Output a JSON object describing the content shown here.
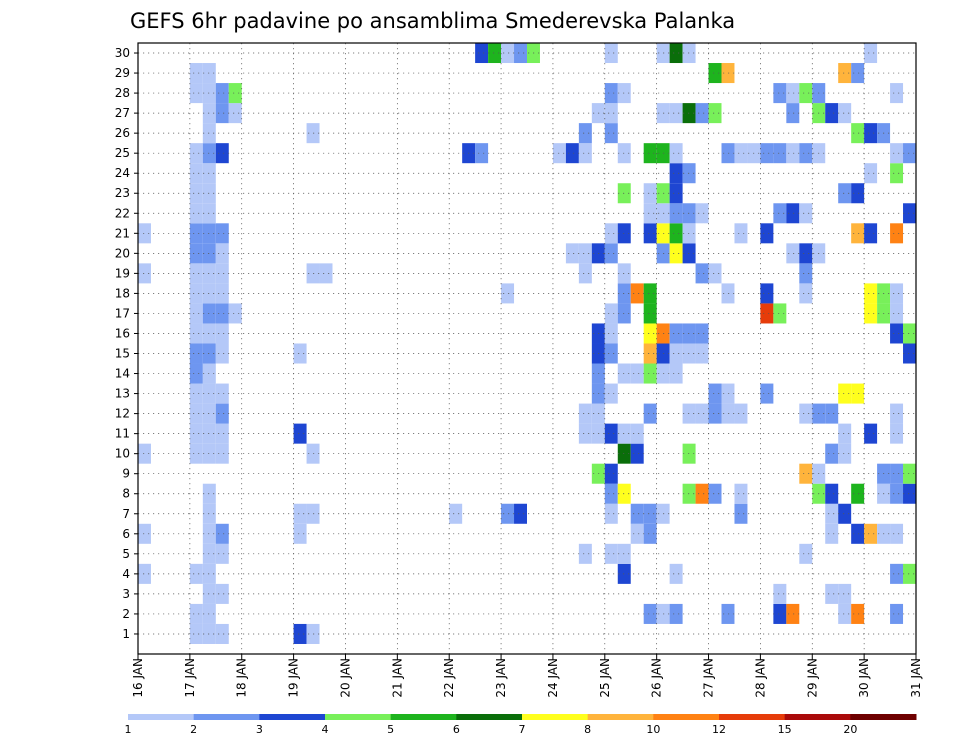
{
  "chart_data": {
    "type": "heatmap",
    "title": "GEFS 6hr padavine po ansamblima Smederevska Palanka",
    "xlabel": "",
    "ylabel": "",
    "x_ticks": [
      "16 JAN",
      "17 JAN",
      "18 JAN",
      "19 JAN",
      "20 JAN",
      "21 JAN",
      "22 JAN",
      "23 JAN",
      "24 JAN",
      "25 JAN",
      "26 JAN",
      "27 JAN",
      "28 JAN",
      "29 JAN",
      "30 JAN",
      "31 JAN"
    ],
    "y_ticks": [
      1,
      2,
      3,
      4,
      5,
      6,
      7,
      8,
      9,
      10,
      11,
      12,
      13,
      14,
      15,
      16,
      17,
      18,
      19,
      20,
      21,
      22,
      23,
      24,
      25,
      26,
      27,
      28,
      29,
      30
    ],
    "xlim": [
      "16 JAN 00",
      "31 JAN 00"
    ],
    "ylim": [
      0,
      30
    ],
    "step_hours": 6,
    "grid": true,
    "legend_position": "bottom",
    "legend": {
      "labels": [
        "1",
        "2",
        "3",
        "4",
        "5",
        "6",
        "7",
        "8",
        "10",
        "12",
        "15",
        "20"
      ],
      "colors": [
        "#b4c8f8",
        "#6e96f0",
        "#1e46d2",
        "#78f05a",
        "#1eb41e",
        "#0a6e0a",
        "#ffff1e",
        "#ffb43c",
        "#ff8214",
        "#e63c0a",
        "#aa0a0a",
        "#6e0000"
      ]
    },
    "cells": [
      [
        1,
        17.0,
        1
      ],
      [
        1,
        17.25,
        1
      ],
      [
        1,
        17.5,
        1
      ],
      [
        1,
        19.0,
        3
      ],
      [
        1,
        19.25,
        1
      ],
      [
        2,
        17.0,
        1
      ],
      [
        2,
        17.25,
        1
      ],
      [
        2,
        25.75,
        2
      ],
      [
        2,
        26.0,
        1
      ],
      [
        2,
        26.25,
        2
      ],
      [
        2,
        27.25,
        2
      ],
      [
        2,
        28.25,
        3
      ],
      [
        2,
        28.5,
        9
      ],
      [
        2,
        29.5,
        1
      ],
      [
        2,
        29.75,
        9
      ],
      [
        2,
        30.5,
        2
      ],
      [
        3,
        17.25,
        1
      ],
      [
        3,
        17.5,
        1
      ],
      [
        3,
        28.25,
        1
      ],
      [
        3,
        29.25,
        1
      ],
      [
        3,
        29.5,
        1
      ],
      [
        4,
        16.0,
        1
      ],
      [
        4,
        17.0,
        1
      ],
      [
        4,
        17.25,
        1
      ],
      [
        4,
        25.25,
        3
      ],
      [
        4,
        26.25,
        1
      ],
      [
        4,
        30.5,
        2
      ],
      [
        4,
        30.75,
        4
      ],
      [
        5,
        17.25,
        1
      ],
      [
        5,
        17.5,
        1
      ],
      [
        5,
        24.5,
        1
      ],
      [
        5,
        25.0,
        1
      ],
      [
        5,
        25.25,
        1
      ],
      [
        5,
        28.75,
        1
      ],
      [
        6,
        16.0,
        1
      ],
      [
        6,
        17.25,
        1
      ],
      [
        6,
        17.5,
        2
      ],
      [
        6,
        19.0,
        1
      ],
      [
        6,
        25.5,
        1
      ],
      [
        6,
        25.75,
        2
      ],
      [
        6,
        29.25,
        1
      ],
      [
        6,
        29.75,
        3
      ],
      [
        6,
        30.0,
        8
      ],
      [
        6,
        30.25,
        1
      ],
      [
        6,
        30.5,
        1
      ],
      [
        7,
        17.25,
        1
      ],
      [
        7,
        19.0,
        1
      ],
      [
        7,
        19.25,
        1
      ],
      [
        7,
        22.0,
        1
      ],
      [
        7,
        23.0,
        2
      ],
      [
        7,
        23.25,
        3
      ],
      [
        7,
        25.0,
        1
      ],
      [
        7,
        25.5,
        2
      ],
      [
        7,
        25.75,
        2
      ],
      [
        7,
        26.0,
        1
      ],
      [
        7,
        27.5,
        2
      ],
      [
        7,
        29.25,
        1
      ],
      [
        7,
        29.5,
        3
      ],
      [
        8,
        17.25,
        1
      ],
      [
        8,
        25.0,
        2
      ],
      [
        8,
        25.25,
        7
      ],
      [
        8,
        26.5,
        4
      ],
      [
        8,
        26.75,
        9
      ],
      [
        8,
        27.0,
        2
      ],
      [
        8,
        27.5,
        1
      ],
      [
        8,
        29.0,
        4
      ],
      [
        8,
        29.25,
        3
      ],
      [
        8,
        29.75,
        5
      ],
      [
        8,
        30.25,
        1
      ],
      [
        8,
        30.5,
        2
      ],
      [
        8,
        30.75,
        3
      ],
      [
        9,
        24.75,
        4
      ],
      [
        9,
        25.0,
        3
      ],
      [
        9,
        28.75,
        8
      ],
      [
        9,
        29.0,
        1
      ],
      [
        9,
        30.25,
        2
      ],
      [
        9,
        30.5,
        2
      ],
      [
        9,
        30.75,
        4
      ],
      [
        10,
        16.0,
        1
      ],
      [
        10,
        17.0,
        1
      ],
      [
        10,
        17.25,
        1
      ],
      [
        10,
        17.5,
        1
      ],
      [
        10,
        19.25,
        1
      ],
      [
        10,
        25.25,
        6
      ],
      [
        10,
        25.5,
        3
      ],
      [
        10,
        26.5,
        4
      ],
      [
        10,
        29.25,
        2
      ],
      [
        10,
        29.5,
        1
      ],
      [
        11,
        17.0,
        1
      ],
      [
        11,
        17.25,
        1
      ],
      [
        11,
        17.5,
        1
      ],
      [
        11,
        19.0,
        3
      ],
      [
        11,
        24.5,
        1
      ],
      [
        11,
        24.75,
        1
      ],
      [
        11,
        25.0,
        3
      ],
      [
        11,
        25.25,
        1
      ],
      [
        11,
        25.5,
        1
      ],
      [
        11,
        29.5,
        1
      ],
      [
        11,
        30.0,
        3
      ],
      [
        11,
        30.5,
        1
      ],
      [
        12,
        17.0,
        1
      ],
      [
        12,
        17.25,
        1
      ],
      [
        12,
        17.5,
        2
      ],
      [
        12,
        24.5,
        1
      ],
      [
        12,
        24.75,
        1
      ],
      [
        12,
        25.75,
        2
      ],
      [
        12,
        26.5,
        1
      ],
      [
        12,
        26.75,
        1
      ],
      [
        12,
        27.0,
        2
      ],
      [
        12,
        27.25,
        1
      ],
      [
        12,
        27.5,
        1
      ],
      [
        12,
        28.75,
        1
      ],
      [
        12,
        29.0,
        2
      ],
      [
        12,
        29.25,
        2
      ],
      [
        12,
        30.5,
        1
      ],
      [
        13,
        17.0,
        1
      ],
      [
        13,
        17.25,
        1
      ],
      [
        13,
        17.5,
        1
      ],
      [
        13,
        24.75,
        2
      ],
      [
        13,
        25.0,
        1
      ],
      [
        13,
        27.0,
        2
      ],
      [
        13,
        27.25,
        1
      ],
      [
        13,
        28.0,
        2
      ],
      [
        13,
        29.5,
        7
      ],
      [
        13,
        29.75,
        7
      ],
      [
        14,
        17.0,
        2
      ],
      [
        14,
        17.25,
        1
      ],
      [
        14,
        24.75,
        2
      ],
      [
        14,
        25.25,
        1
      ],
      [
        14,
        25.5,
        1
      ],
      [
        14,
        25.75,
        4
      ],
      [
        14,
        26.0,
        1
      ],
      [
        14,
        26.25,
        1
      ],
      [
        15,
        17.0,
        2
      ],
      [
        15,
        17.25,
        2
      ],
      [
        15,
        17.5,
        1
      ],
      [
        15,
        19.0,
        1
      ],
      [
        15,
        24.75,
        3
      ],
      [
        15,
        25.0,
        2
      ],
      [
        15,
        25.75,
        8
      ],
      [
        15,
        26.0,
        3
      ],
      [
        15,
        26.25,
        1
      ],
      [
        15,
        26.5,
        1
      ],
      [
        15,
        26.75,
        1
      ],
      [
        15,
        30.75,
        3
      ],
      [
        16,
        17.0,
        1
      ],
      [
        16,
        17.25,
        1
      ],
      [
        16,
        17.5,
        1
      ],
      [
        16,
        24.75,
        3
      ],
      [
        16,
        25.0,
        1
      ],
      [
        16,
        25.75,
        7
      ],
      [
        16,
        26.0,
        9
      ],
      [
        16,
        26.25,
        2
      ],
      [
        16,
        26.5,
        2
      ],
      [
        16,
        26.75,
        2
      ],
      [
        16,
        30.5,
        3
      ],
      [
        16,
        30.75,
        4
      ],
      [
        17,
        17.0,
        1
      ],
      [
        17,
        17.25,
        2
      ],
      [
        17,
        17.5,
        2
      ],
      [
        17,
        17.75,
        1
      ],
      [
        17,
        25.0,
        1
      ],
      [
        17,
        25.25,
        2
      ],
      [
        17,
        25.75,
        5
      ],
      [
        17,
        28.0,
        10
      ],
      [
        17,
        28.25,
        4
      ],
      [
        17,
        30.0,
        7
      ],
      [
        17,
        30.25,
        4
      ],
      [
        17,
        30.5,
        1
      ],
      [
        18,
        17.0,
        1
      ],
      [
        18,
        17.25,
        1
      ],
      [
        18,
        17.5,
        1
      ],
      [
        18,
        23.0,
        1
      ],
      [
        18,
        25.25,
        2
      ],
      [
        18,
        25.5,
        9
      ],
      [
        18,
        25.75,
        5
      ],
      [
        18,
        27.25,
        1
      ],
      [
        18,
        28.0,
        3
      ],
      [
        18,
        28.75,
        1
      ],
      [
        18,
        30.0,
        7
      ],
      [
        18,
        30.25,
        4
      ],
      [
        18,
        30.5,
        1
      ],
      [
        19,
        16.0,
        1
      ],
      [
        19,
        17.0,
        1
      ],
      [
        19,
        17.25,
        1
      ],
      [
        19,
        17.5,
        1
      ],
      [
        19,
        19.25,
        1
      ],
      [
        19,
        19.5,
        1
      ],
      [
        19,
        24.5,
        1
      ],
      [
        19,
        25.25,
        1
      ],
      [
        19,
        26.75,
        2
      ],
      [
        19,
        27.0,
        1
      ],
      [
        19,
        28.75,
        2
      ],
      [
        20,
        17.0,
        2
      ],
      [
        20,
        17.25,
        2
      ],
      [
        20,
        17.5,
        1
      ],
      [
        20,
        24.25,
        1
      ],
      [
        20,
        24.5,
        1
      ],
      [
        20,
        24.75,
        3
      ],
      [
        20,
        25.0,
        2
      ],
      [
        20,
        26.0,
        2
      ],
      [
        20,
        26.25,
        7
      ],
      [
        20,
        26.5,
        3
      ],
      [
        20,
        28.5,
        1
      ],
      [
        20,
        28.75,
        3
      ],
      [
        20,
        29.0,
        1
      ],
      [
        21,
        16.0,
        1
      ],
      [
        21,
        17.0,
        2
      ],
      [
        21,
        17.25,
        2
      ],
      [
        21,
        17.5,
        2
      ],
      [
        21,
        25.0,
        1
      ],
      [
        21,
        25.25,
        3
      ],
      [
        21,
        25.75,
        3
      ],
      [
        21,
        26.0,
        7
      ],
      [
        21,
        26.25,
        5
      ],
      [
        21,
        26.5,
        1
      ],
      [
        21,
        27.5,
        1
      ],
      [
        21,
        28.0,
        3
      ],
      [
        21,
        29.75,
        8
      ],
      [
        21,
        30.0,
        3
      ],
      [
        21,
        30.5,
        9
      ],
      [
        22,
        17.0,
        1
      ],
      [
        22,
        17.25,
        1
      ],
      [
        22,
        25.75,
        1
      ],
      [
        22,
        26.0,
        1
      ],
      [
        22,
        26.25,
        2
      ],
      [
        22,
        26.5,
        2
      ],
      [
        22,
        26.75,
        1
      ],
      [
        22,
        28.25,
        2
      ],
      [
        22,
        28.5,
        3
      ],
      [
        22,
        28.75,
        1
      ],
      [
        22,
        30.75,
        3
      ],
      [
        23,
        17.0,
        1
      ],
      [
        23,
        17.25,
        1
      ],
      [
        23,
        25.25,
        4
      ],
      [
        23,
        25.75,
        1
      ],
      [
        23,
        26.0,
        4
      ],
      [
        23,
        26.25,
        3
      ],
      [
        23,
        29.5,
        2
      ],
      [
        23,
        29.75,
        3
      ],
      [
        24,
        17.0,
        1
      ],
      [
        24,
        17.25,
        1
      ],
      [
        24,
        26.25,
        3
      ],
      [
        24,
        26.5,
        2
      ],
      [
        24,
        30.0,
        1
      ],
      [
        24,
        30.5,
        4
      ],
      [
        25,
        17.0,
        1
      ],
      [
        25,
        17.25,
        2
      ],
      [
        25,
        17.5,
        3
      ],
      [
        25,
        22.25,
        3
      ],
      [
        25,
        22.5,
        2
      ],
      [
        25,
        24.0,
        1
      ],
      [
        25,
        24.25,
        3
      ],
      [
        25,
        24.5,
        1
      ],
      [
        25,
        25.25,
        1
      ],
      [
        25,
        25.75,
        5
      ],
      [
        25,
        26.0,
        5
      ],
      [
        25,
        26.25,
        1
      ],
      [
        25,
        27.25,
        2
      ],
      [
        25,
        27.5,
        1
      ],
      [
        25,
        27.75,
        1
      ],
      [
        25,
        28.0,
        2
      ],
      [
        25,
        28.25,
        2
      ],
      [
        25,
        28.5,
        1
      ],
      [
        25,
        28.75,
        2
      ],
      [
        25,
        29.0,
        1
      ],
      [
        25,
        30.5,
        1
      ],
      [
        25,
        30.75,
        2
      ],
      [
        26,
        17.25,
        1
      ],
      [
        26,
        19.25,
        1
      ],
      [
        26,
        24.5,
        2
      ],
      [
        26,
        25.0,
        2
      ],
      [
        26,
        29.75,
        4
      ],
      [
        26,
        30.0,
        3
      ],
      [
        26,
        30.25,
        2
      ],
      [
        27,
        17.25,
        1
      ],
      [
        27,
        17.5,
        2
      ],
      [
        27,
        17.75,
        1
      ],
      [
        27,
        24.75,
        1
      ],
      [
        27,
        25.0,
        1
      ],
      [
        27,
        26.0,
        1
      ],
      [
        27,
        26.25,
        1
      ],
      [
        27,
        26.5,
        6
      ],
      [
        27,
        26.75,
        2
      ],
      [
        27,
        27.0,
        4
      ],
      [
        27,
        28.5,
        2
      ],
      [
        27,
        29.0,
        4
      ],
      [
        27,
        29.25,
        3
      ],
      [
        27,
        29.5,
        1
      ],
      [
        28,
        17.0,
        1
      ],
      [
        28,
        17.25,
        1
      ],
      [
        28,
        17.5,
        2
      ],
      [
        28,
        17.75,
        4
      ],
      [
        28,
        25.0,
        2
      ],
      [
        28,
        25.25,
        1
      ],
      [
        28,
        28.25,
        2
      ],
      [
        28,
        28.5,
        1
      ],
      [
        28,
        28.75,
        4
      ],
      [
        28,
        29.0,
        2
      ],
      [
        28,
        30.5,
        1
      ],
      [
        29,
        17.0,
        1
      ],
      [
        29,
        17.25,
        1
      ],
      [
        29,
        27.0,
        5
      ],
      [
        29,
        27.25,
        8
      ],
      [
        29,
        29.5,
        8
      ],
      [
        29,
        29.75,
        2
      ],
      [
        30,
        22.5,
        3
      ],
      [
        30,
        22.75,
        5
      ],
      [
        30,
        23.0,
        1
      ],
      [
        30,
        23.25,
        2
      ],
      [
        30,
        23.5,
        4
      ],
      [
        30,
        25.0,
        1
      ],
      [
        30,
        26.0,
        1
      ],
      [
        30,
        26.25,
        6
      ],
      [
        30,
        26.5,
        1
      ],
      [
        30,
        30.0,
        1
      ]
    ]
  }
}
